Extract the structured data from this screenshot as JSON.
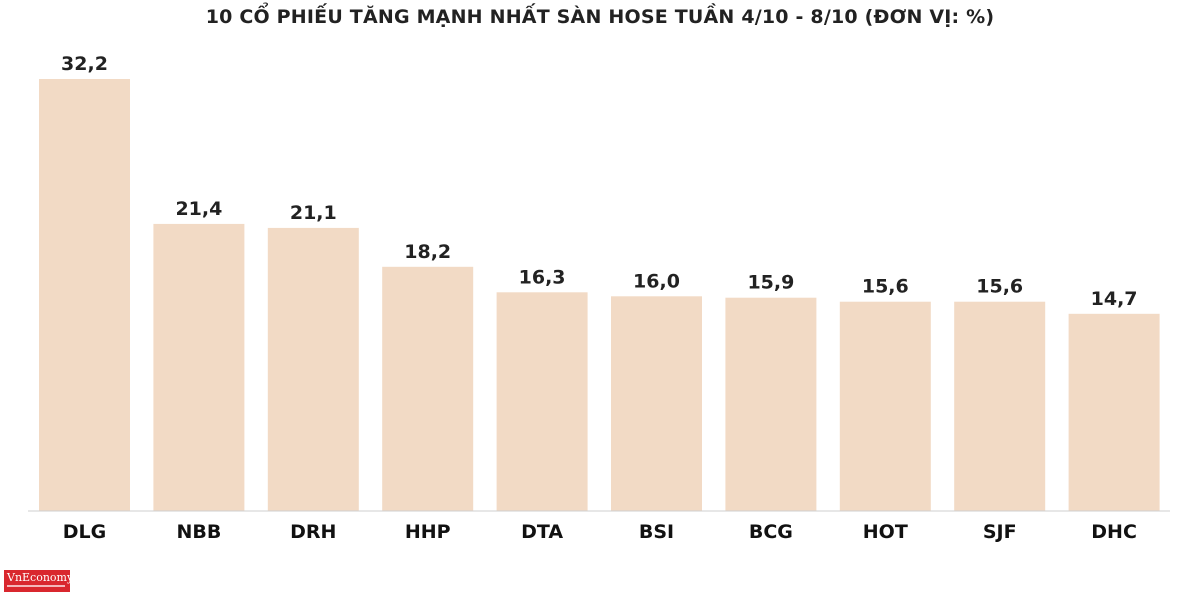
{
  "chart_data": {
    "type": "bar",
    "title": "10 CỔ PHIẾU TĂNG MẠNH NHẤT SÀN HOSE TUẦN 4/10 - 8/10 (ĐƠN VỊ: %)",
    "xlabel": "",
    "ylabel": "",
    "categories": [
      "DLG",
      "NBB",
      "DRH",
      "HHP",
      "DTA",
      "BSI",
      "BCG",
      "HOT",
      "SJF",
      "DHC"
    ],
    "values": [
      32.2,
      21.4,
      21.1,
      18.2,
      16.3,
      16.0,
      15.9,
      15.6,
      15.6,
      14.7
    ],
    "value_labels": [
      "32,2",
      "21,4",
      "21,1",
      "18,2",
      "16,3",
      "16,0",
      "15,9",
      "15,6",
      "15,6",
      "14,7"
    ],
    "ylim": [
      0,
      32.2
    ],
    "grid": false,
    "legend": "none",
    "colors": {
      "bar": "#f2dac5",
      "axis": "#cfcfcf",
      "text": "#222222"
    }
  },
  "brand": {
    "logo_text": "VnEconomy",
    "logo_color": "#d9272e"
  }
}
